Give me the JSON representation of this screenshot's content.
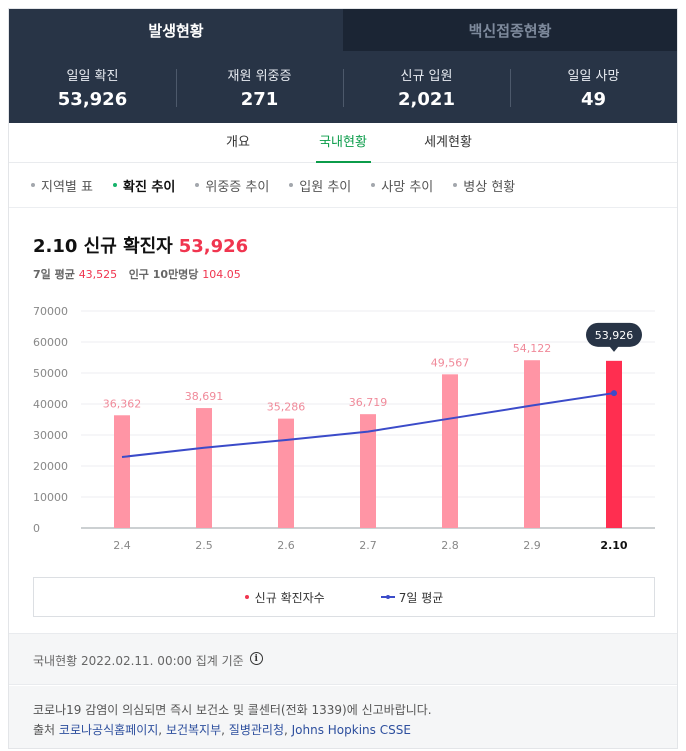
{
  "tabs": {
    "main": [
      "발생현황",
      "백신접종현황"
    ]
  },
  "summary": [
    {
      "label": "일일 확진",
      "value": "53,926"
    },
    {
      "label": "재원 위중증",
      "value": "271"
    },
    {
      "label": "신규 입원",
      "value": "2,021"
    },
    {
      "label": "일일 사망",
      "value": "49"
    }
  ],
  "sub_tabs": [
    "개요",
    "국내현황",
    "세계현황"
  ],
  "filters": [
    "지역별 표",
    "확진 추이",
    "위중증 추이",
    "입원 추이",
    "사망 추이",
    "병상 현황"
  ],
  "headline": {
    "title": "2.10 신규 확진자",
    "value": "53,926"
  },
  "subline": {
    "avg_label": "7일 평균",
    "avg_value": "43,525",
    "per_label": "인구 10만명당",
    "per_value": "104.05"
  },
  "colors": {
    "bar": "#ff95a5",
    "bar_highlight": "#ff2e50",
    "line": "#3b4bc9",
    "accent_green": "#0b9c4a",
    "header_bg": "#283446"
  },
  "chart_data": {
    "type": "bar",
    "categories": [
      "2.4",
      "2.5",
      "2.6",
      "2.7",
      "2.8",
      "2.9",
      "2.10"
    ],
    "series": [
      {
        "name": "신규 확진자수",
        "type": "bar",
        "values": [
          36362,
          38691,
          35286,
          36719,
          49567,
          54122,
          53926
        ],
        "labels": [
          "36,362",
          "38,691",
          "35,286",
          "36,719",
          "49,567",
          "54,122",
          "53,926"
        ]
      },
      {
        "name": "7일 평균",
        "type": "line",
        "values": [
          22900,
          25900,
          28400,
          31100,
          35300,
          39500,
          43525
        ]
      }
    ],
    "yticks": [
      0,
      10000,
      20000,
      30000,
      40000,
      50000,
      60000,
      70000
    ],
    "ylim": [
      0,
      70000
    ],
    "highlight_index": 6,
    "grid": true,
    "legend": "bottom"
  },
  "legend": {
    "bar_label": "신규 확진자수",
    "line_label": "7일 평균"
  },
  "footer": {
    "basis": "국내현황 2022.02.11. 00:00 집계 기준",
    "notice": "코로나19 감염이 의심되면 즉시 보건소 및 콜센터(전화 1339)에 신고바랍니다.",
    "source_prefix": "출처",
    "sources": [
      "코로나공식홈페이지",
      "보건복지부",
      "질병관리청",
      "Johns Hopkins CSSE"
    ]
  }
}
